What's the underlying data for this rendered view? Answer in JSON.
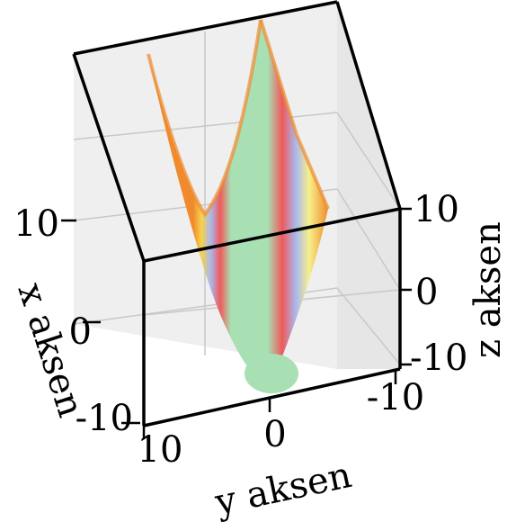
{
  "chart_data": {
    "type": "surface",
    "surface": "z = y^2 (parabolic trough extruded along x)",
    "colormap": "rainbow bands",
    "grid": true,
    "x_axis": {
      "label": "x aksen",
      "range": [
        -10,
        10
      ],
      "ticks": [
        "10",
        "0",
        "-10"
      ]
    },
    "y_axis": {
      "label": "y aksen",
      "range": [
        -10,
        10
      ],
      "ticks": [
        "10",
        "0",
        "-10"
      ]
    },
    "z_axis": {
      "label": "z aksen",
      "range": [
        -10,
        10
      ],
      "ticks": [
        "10",
        "0",
        "-10"
      ]
    }
  }
}
